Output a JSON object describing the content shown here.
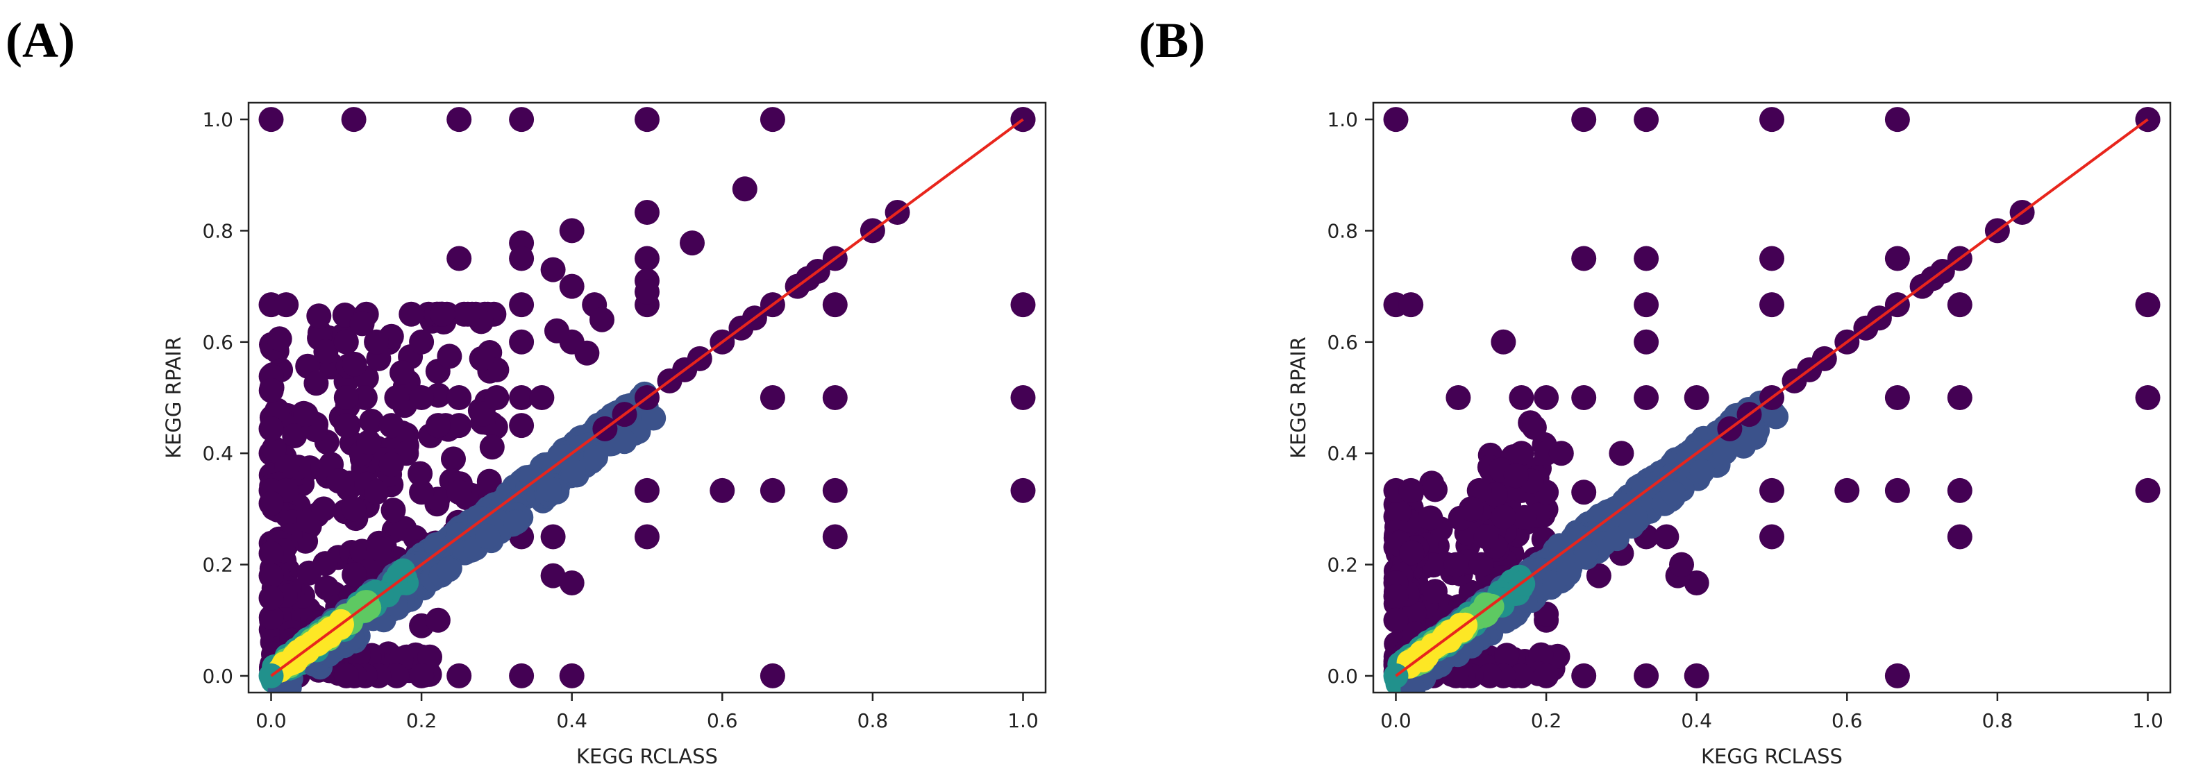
{
  "panels": [
    {
      "label": "(A)",
      "chart_data": {
        "type": "scatter",
        "title": "",
        "xlabel": "KEGG RCLASS",
        "ylabel": "KEGG RPAIR",
        "xlim": [
          -0.03,
          1.03
        ],
        "ylim": [
          -0.03,
          1.03
        ],
        "xticks": [
          "0.0",
          "0.2",
          "0.4",
          "0.6",
          "0.8",
          "1.0"
        ],
        "yticks": [
          "0.0",
          "0.2",
          "0.4",
          "0.6",
          "0.8",
          "1.0"
        ],
        "grid": false,
        "reference_line": {
          "from": [
            0,
            0
          ],
          "to": [
            1,
            1
          ],
          "color": "#e8251c"
        },
        "colors": {
          "low": "#440154",
          "mid_low": "#3b528b",
          "mid": "#21918c",
          "mid_high": "#5ec962",
          "high": "#fde725"
        },
        "outliers": [
          [
            0.0,
            1.0
          ],
          [
            0.11,
            1.0
          ],
          [
            0.25,
            1.0
          ],
          [
            0.333,
            1.0
          ],
          [
            0.5,
            1.0
          ],
          [
            0.667,
            1.0
          ],
          [
            1.0,
            1.0
          ],
          [
            0.0,
            0.667
          ],
          [
            0.02,
            0.667
          ],
          [
            1.0,
            0.667
          ],
          [
            1.0,
            0.5
          ],
          [
            1.0,
            0.333
          ],
          [
            0.0,
            0.444
          ],
          [
            0.0,
            0.333
          ],
          [
            0.02,
            0.333
          ],
          [
            0.0,
            0.31
          ],
          [
            0.0,
            0.22
          ],
          [
            0.0,
            0.18
          ],
          [
            0.0,
            0.14
          ],
          [
            0.63,
            0.875
          ],
          [
            0.5,
            0.833
          ],
          [
            0.333,
            0.778
          ],
          [
            0.333,
            0.75
          ],
          [
            0.25,
            0.75
          ],
          [
            0.375,
            0.73
          ],
          [
            0.4,
            0.8
          ],
          [
            0.5,
            0.75
          ],
          [
            0.5,
            0.71
          ],
          [
            0.5,
            0.667
          ],
          [
            0.333,
            0.667
          ],
          [
            0.4,
            0.7
          ],
          [
            0.43,
            0.667
          ],
          [
            0.56,
            0.778
          ],
          [
            0.44,
            0.64
          ],
          [
            0.5,
            0.69
          ],
          [
            0.333,
            0.6
          ],
          [
            0.333,
            0.5
          ],
          [
            0.333,
            0.45
          ],
          [
            0.25,
            0.45
          ],
          [
            0.25,
            0.5
          ],
          [
            0.2,
            0.6
          ],
          [
            0.167,
            0.5
          ],
          [
            0.143,
            0.57
          ],
          [
            0.125,
            0.5
          ],
          [
            0.1,
            0.6
          ],
          [
            0.1,
            0.5
          ],
          [
            0.111,
            0.56
          ],
          [
            0.16,
            0.61
          ],
          [
            0.14,
            0.6
          ],
          [
            0.2,
            0.5
          ],
          [
            0.222,
            0.45
          ],
          [
            0.3,
            0.5
          ],
          [
            0.3,
            0.55
          ],
          [
            0.28,
            0.57
          ],
          [
            0.4,
            0.6
          ],
          [
            0.38,
            0.62
          ],
          [
            0.42,
            0.58
          ],
          [
            0.36,
            0.5
          ],
          [
            0.2,
            0.33
          ],
          [
            0.25,
            0.33
          ],
          [
            0.18,
            0.4
          ],
          [
            0.16,
            0.45
          ],
          [
            0.12,
            0.4
          ],
          [
            0.08,
            0.38
          ],
          [
            0.1,
            0.45
          ],
          [
            0.6,
            0.333
          ],
          [
            0.667,
            0.5
          ],
          [
            0.75,
            0.5
          ],
          [
            0.75,
            0.333
          ],
          [
            0.667,
            0.333
          ],
          [
            0.5,
            0.333
          ],
          [
            0.75,
            0.667
          ],
          [
            0.75,
            0.25
          ],
          [
            0.5,
            0.25
          ],
          [
            0.333,
            0.25
          ],
          [
            0.375,
            0.25
          ],
          [
            0.4,
            0.167
          ],
          [
            0.375,
            0.18
          ],
          [
            0.2,
            0.09
          ],
          [
            0.222,
            0.1
          ],
          [
            0.333,
            0.0
          ],
          [
            0.4,
            0.0
          ],
          [
            0.25,
            0.0
          ],
          [
            0.2,
            0.0
          ],
          [
            0.167,
            0.0
          ],
          [
            0.143,
            0.0
          ],
          [
            0.125,
            0.0
          ],
          [
            0.111,
            0.0
          ],
          [
            0.1,
            0.0
          ],
          [
            0.667,
            0.0
          ],
          [
            0.09,
            0.35
          ],
          [
            0.07,
            0.3
          ],
          [
            0.11,
            0.3
          ],
          [
            0.14,
            0.33
          ],
          [
            0.16,
            0.38
          ],
          [
            0.13,
            0.42
          ]
        ],
        "cloud": {
          "xmax": 0.3,
          "ymax": 0.6,
          "count": 260
        },
        "diagonal_points": [
          0.444,
          0.47,
          0.5,
          0.53,
          0.55,
          0.57,
          0.6,
          0.625,
          0.643,
          0.667,
          0.7,
          0.714,
          0.727,
          0.75,
          0.8,
          0.833,
          1.0
        ]
      }
    },
    {
      "label": "(B)",
      "chart_data": {
        "type": "scatter",
        "title": "",
        "xlabel": "KEGG RCLASS",
        "ylabel": "KEGG RPAIR",
        "xlim": [
          -0.03,
          1.03
        ],
        "ylim": [
          -0.03,
          1.03
        ],
        "xticks": [
          "0.0",
          "0.2",
          "0.4",
          "0.6",
          "0.8",
          "1.0"
        ],
        "yticks": [
          "0.0",
          "0.2",
          "0.4",
          "0.6",
          "0.8",
          "1.0"
        ],
        "grid": false,
        "reference_line": {
          "from": [
            0,
            0
          ],
          "to": [
            1,
            1
          ],
          "color": "#e8251c"
        },
        "colors": {
          "low": "#440154",
          "mid_low": "#3b528b",
          "mid": "#21918c",
          "mid_high": "#5ec962",
          "high": "#fde725"
        },
        "outliers": [
          [
            0.0,
            1.0
          ],
          [
            0.25,
            1.0
          ],
          [
            0.333,
            1.0
          ],
          [
            0.5,
            1.0
          ],
          [
            0.667,
            1.0
          ],
          [
            1.0,
            1.0
          ],
          [
            0.0,
            0.667
          ],
          [
            0.02,
            0.667
          ],
          [
            1.0,
            0.667
          ],
          [
            1.0,
            0.5
          ],
          [
            1.0,
            0.333
          ],
          [
            0.0,
            0.333
          ],
          [
            0.02,
            0.333
          ],
          [
            0.0,
            0.167
          ],
          [
            0.0,
            0.143
          ],
          [
            0.0,
            0.1
          ],
          [
            0.25,
            0.75
          ],
          [
            0.333,
            0.75
          ],
          [
            0.5,
            0.75
          ],
          [
            0.667,
            0.75
          ],
          [
            0.5,
            0.667
          ],
          [
            0.333,
            0.667
          ],
          [
            0.75,
            0.667
          ],
          [
            0.143,
            0.6
          ],
          [
            0.333,
            0.6
          ],
          [
            0.083,
            0.5
          ],
          [
            0.167,
            0.5
          ],
          [
            0.2,
            0.5
          ],
          [
            0.25,
            0.5
          ],
          [
            0.333,
            0.5
          ],
          [
            0.4,
            0.5
          ],
          [
            0.667,
            0.5
          ],
          [
            0.75,
            0.5
          ],
          [
            0.6,
            0.333
          ],
          [
            0.5,
            0.333
          ],
          [
            0.667,
            0.333
          ],
          [
            0.75,
            0.333
          ],
          [
            0.75,
            0.25
          ],
          [
            0.5,
            0.25
          ],
          [
            0.333,
            0.25
          ],
          [
            0.3,
            0.4
          ],
          [
            0.167,
            0.4
          ],
          [
            0.2,
            0.4
          ],
          [
            0.25,
            0.33
          ],
          [
            0.125,
            0.375
          ],
          [
            0.111,
            0.333
          ],
          [
            0.1,
            0.3
          ],
          [
            0.143,
            0.286
          ],
          [
            0.167,
            0.333
          ],
          [
            0.2,
            0.33
          ],
          [
            0.14,
            0.37
          ],
          [
            0.4,
            0.167
          ],
          [
            0.375,
            0.18
          ],
          [
            0.38,
            0.2
          ],
          [
            0.36,
            0.25
          ],
          [
            0.27,
            0.18
          ],
          [
            0.3,
            0.22
          ],
          [
            0.2,
            0.1
          ],
          [
            0.2,
            0.111
          ],
          [
            0.25,
            0.0
          ],
          [
            0.333,
            0.0
          ],
          [
            0.4,
            0.0
          ],
          [
            0.667,
            0.0
          ],
          [
            0.2,
            0.0
          ],
          [
            0.167,
            0.0
          ],
          [
            0.143,
            0.0
          ],
          [
            0.125,
            0.0
          ],
          [
            0.1,
            0.0
          ],
          [
            0.09,
            0.0
          ],
          [
            0.08,
            0.0
          ],
          [
            0.05,
            0.0
          ],
          [
            0.18,
            0.35
          ],
          [
            0.16,
            0.36
          ],
          [
            0.22,
            0.4
          ],
          [
            0.12,
            0.25
          ],
          [
            0.08,
            0.2
          ]
        ],
        "cloud": {
          "xmax": 0.2,
          "ymax": 0.32,
          "count": 150
        },
        "diagonal_points": [
          0.444,
          0.47,
          0.5,
          0.53,
          0.55,
          0.57,
          0.6,
          0.625,
          0.643,
          0.667,
          0.7,
          0.714,
          0.727,
          0.75,
          0.8,
          0.833,
          1.0
        ]
      }
    }
  ]
}
